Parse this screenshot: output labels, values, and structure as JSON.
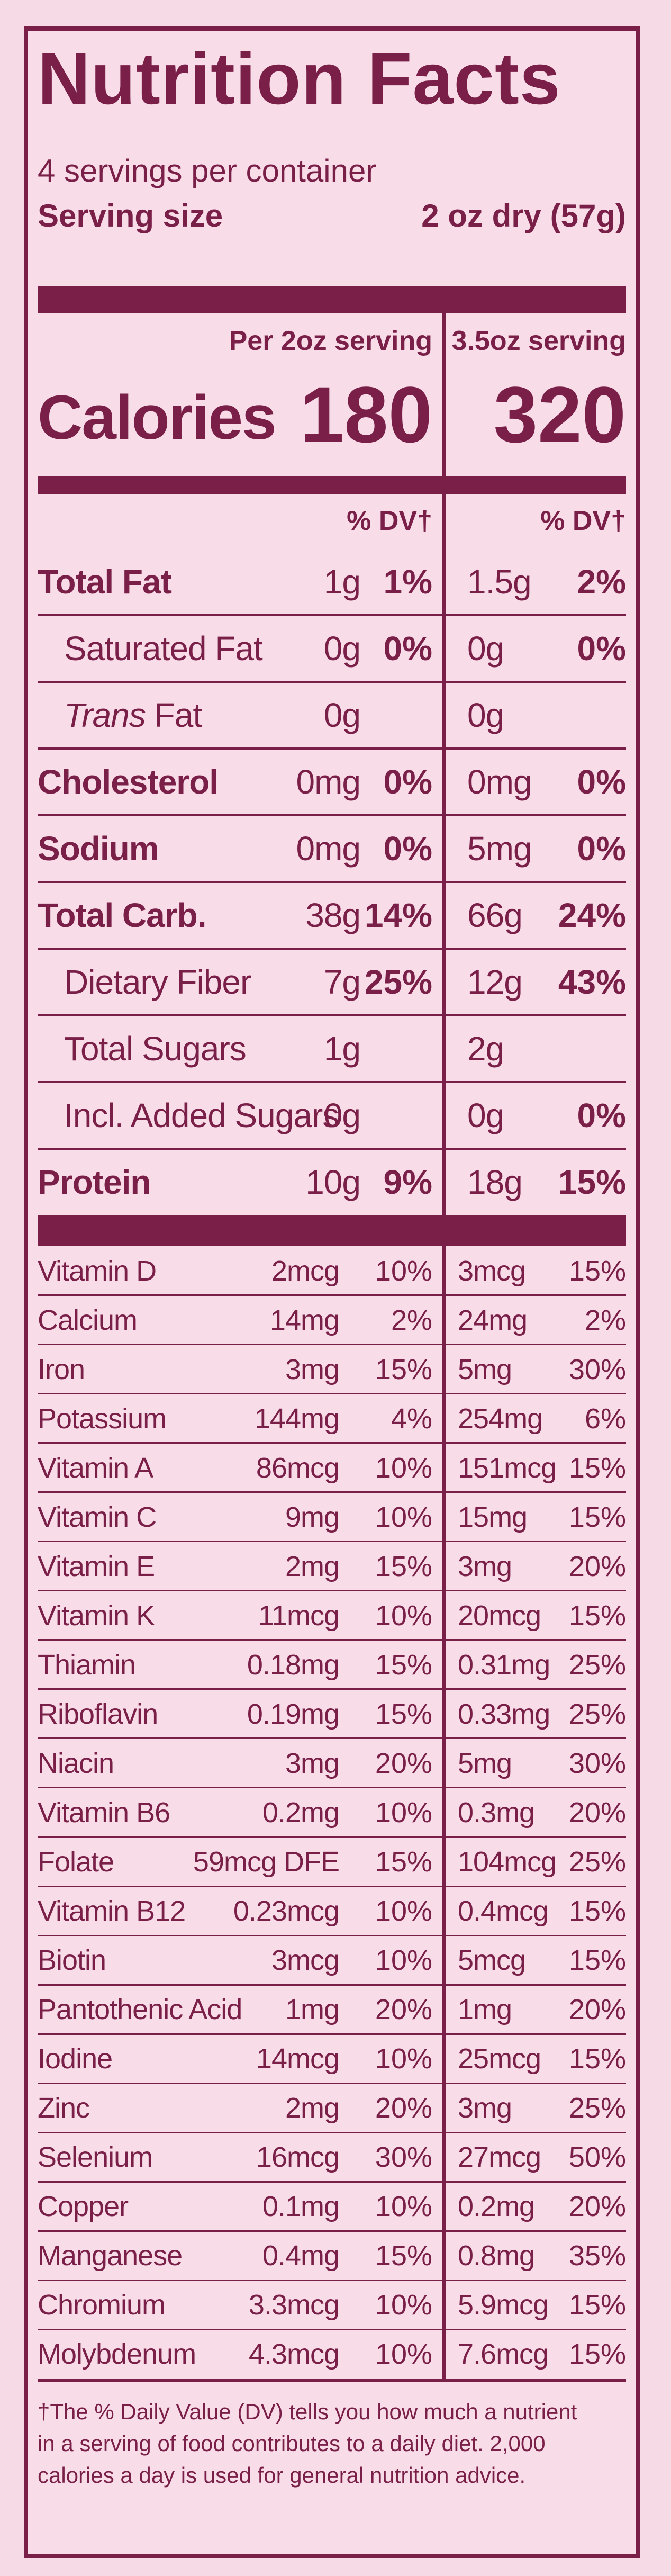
{
  "title": "Nutrition Facts",
  "servings": "4 servings per container",
  "serving_size_label": "Serving size",
  "serving_size_value": "2 oz dry (57g)",
  "col1_header": "Per 2oz serving",
  "col2_header": "3.5oz serving",
  "calories_label": "Calories",
  "calories_col1": "180",
  "calories_col2": "320",
  "dv_label": "% DV†",
  "macros": [
    {
      "name": "Total Fat",
      "bold": true,
      "indent": false,
      "amt1": "1g",
      "dv1": "1%",
      "amt2": "1.5g",
      "dv2": "2%"
    },
    {
      "name": "Saturated Fat",
      "bold": false,
      "indent": true,
      "amt1": "0g",
      "dv1": "0%",
      "amt2": "0g",
      "dv2": "0%"
    },
    {
      "name_italic": "Trans",
      "name": " Fat",
      "bold": false,
      "indent": true,
      "amt1": "0g",
      "dv1": "",
      "amt2": "0g",
      "dv2": ""
    },
    {
      "name": "Cholesterol",
      "bold": true,
      "indent": false,
      "amt1": "0mg",
      "dv1": "0%",
      "amt2": "0mg",
      "dv2": "0%"
    },
    {
      "name": "Sodium",
      "bold": true,
      "indent": false,
      "amt1": "0mg",
      "dv1": "0%",
      "amt2": "5mg",
      "dv2": "0%"
    },
    {
      "name": "Total Carb.",
      "bold": true,
      "indent": false,
      "amt1": "38g",
      "dv1": "14%",
      "amt2": "66g",
      "dv2": "24%"
    },
    {
      "name": "Dietary Fiber",
      "bold": false,
      "indent": true,
      "amt1": "7g",
      "dv1": "25%",
      "amt2": "12g",
      "dv2": "43%"
    },
    {
      "name": "Total Sugars",
      "bold": false,
      "indent": true,
      "amt1": "1g",
      "dv1": "",
      "amt2": "2g",
      "dv2": ""
    },
    {
      "name": "Incl. Added Sugars",
      "bold": false,
      "indent": true,
      "amt1": "0g",
      "dv1": "",
      "amt2": "0g",
      "dv2": "0%"
    },
    {
      "name": "Protein",
      "bold": true,
      "indent": false,
      "amt1": "10g",
      "dv1": "9%",
      "amt2": "18g",
      "dv2": "15%"
    }
  ],
  "micros": [
    {
      "name": "Vitamin D",
      "amt1": "2mcg",
      "dv1": "10%",
      "amt2": "3mcg",
      "dv2": "15%"
    },
    {
      "name": "Calcium",
      "amt1": "14mg",
      "dv1": "2%",
      "amt2": "24mg",
      "dv2": "2%"
    },
    {
      "name": "Iron",
      "amt1": "3mg",
      "dv1": "15%",
      "amt2": "5mg",
      "dv2": "30%"
    },
    {
      "name": "Potassium",
      "amt1": "144mg",
      "dv1": "4%",
      "amt2": "254mg",
      "dv2": "6%"
    },
    {
      "name": "Vitamin A",
      "amt1": "86mcg",
      "dv1": "10%",
      "amt2": "151mcg",
      "dv2": "15%"
    },
    {
      "name": "Vitamin C",
      "amt1": "9mg",
      "dv1": "10%",
      "amt2": "15mg",
      "dv2": "15%"
    },
    {
      "name": "Vitamin E",
      "amt1": "2mg",
      "dv1": "15%",
      "amt2": "3mg",
      "dv2": "20%"
    },
    {
      "name": "Vitamin K",
      "amt1": "11mcg",
      "dv1": "10%",
      "amt2": "20mcg",
      "dv2": "15%"
    },
    {
      "name": "Thiamin",
      "amt1": "0.18mg",
      "dv1": "15%",
      "amt2": "0.31mg",
      "dv2": "25%"
    },
    {
      "name": "Riboflavin",
      "amt1": "0.19mg",
      "dv1": "15%",
      "amt2": "0.33mg",
      "dv2": "25%"
    },
    {
      "name": "Niacin",
      "amt1": "3mg",
      "dv1": "20%",
      "amt2": "5mg",
      "dv2": "30%"
    },
    {
      "name": "Vitamin B6",
      "amt1": "0.2mg",
      "dv1": "10%",
      "amt2": "0.3mg",
      "dv2": "20%"
    },
    {
      "name": "Folate",
      "amt1": "59mcg DFE",
      "dv1": "15%",
      "amt2": "104mcg",
      "dv2": "25%"
    },
    {
      "name": "Vitamin B12",
      "amt1": "0.23mcg",
      "dv1": "10%",
      "amt2": "0.4mcg",
      "dv2": "15%"
    },
    {
      "name": "Biotin",
      "amt1": "3mcg",
      "dv1": "10%",
      "amt2": "5mcg",
      "dv2": "15%"
    },
    {
      "name": "Pantothenic Acid",
      "amt1": "1mg",
      "dv1": "20%",
      "amt2": "1mg",
      "dv2": "20%"
    },
    {
      "name": "Iodine",
      "amt1": "14mcg",
      "dv1": "10%",
      "amt2": "25mcg",
      "dv2": "15%"
    },
    {
      "name": "Zinc",
      "amt1": "2mg",
      "dv1": "20%",
      "amt2": "3mg",
      "dv2": "25%"
    },
    {
      "name": "Selenium",
      "amt1": "16mcg",
      "dv1": "30%",
      "amt2": "27mcg",
      "dv2": "50%"
    },
    {
      "name": "Copper",
      "amt1": "0.1mg",
      "dv1": "10%",
      "amt2": "0.2mg",
      "dv2": "20%"
    },
    {
      "name": "Manganese",
      "amt1": "0.4mg",
      "dv1": "15%",
      "amt2": "0.8mg",
      "dv2": "35%"
    },
    {
      "name": "Chromium",
      "amt1": "3.3mcg",
      "dv1": "10%",
      "amt2": "5.9mcg",
      "dv2": "15%"
    },
    {
      "name": "Molybdenum",
      "amt1": "4.3mcg",
      "dv1": "10%",
      "amt2": "7.6mcg",
      "dv2": "15%"
    }
  ],
  "footnote_line1": "†The % Daily Value (DV) tells you how much a nutrient",
  "footnote_line2": "in a serving of  food contributes to a daily diet. 2,000",
  "footnote_line3": "calories a day is used for general nutrition advice."
}
